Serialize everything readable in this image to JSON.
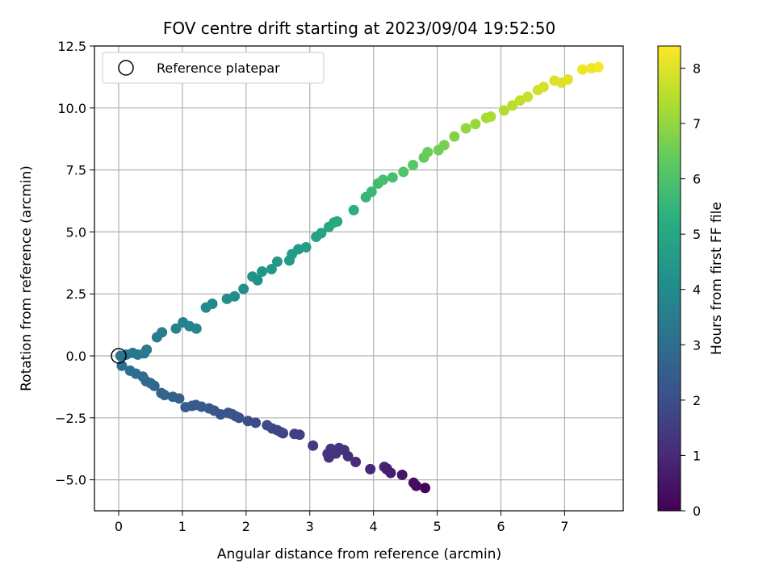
{
  "chart_data": {
    "type": "scatter",
    "title": "FOV centre drift starting at 2023/09/04 19:52:50",
    "xlabel": "Angular distance from reference (arcmin)",
    "ylabel": "Rotation from reference (arcmin)",
    "xlim": [
      -0.38,
      7.92
    ],
    "ylim": [
      -6.25,
      12.5
    ],
    "x_ticks": [
      "0",
      "1",
      "2",
      "3",
      "4",
      "5",
      "6",
      "7"
    ],
    "y_ticks": [
      "−5.0",
      "−2.5",
      "0.0",
      "2.5",
      "5.0",
      "7.5",
      "10.0",
      "12.5"
    ],
    "grid": true,
    "legend": {
      "position": "top-left",
      "entries": [
        "Reference platepar"
      ]
    },
    "reference_point": {
      "x": 0,
      "y": 0
    },
    "colorbar": {
      "label": "Hours from first FF file",
      "range": [
        0,
        8.4
      ],
      "ticks": [
        "0",
        "1",
        "2",
        "3",
        "4",
        "5",
        "6",
        "7",
        "8"
      ],
      "colormap": "viridis"
    },
    "series": [
      {
        "x": [
          4.81,
          4.67,
          4.63,
          4.45,
          4.27,
          4.21,
          4.17,
          4.21,
          3.95,
          3.72,
          3.6,
          3.54,
          3.46,
          3.41,
          3.33,
          3.3,
          3.28,
          3.05,
          2.84,
          2.76,
          2.58,
          2.55,
          2.49,
          2.41,
          2.33,
          2.15,
          2.03,
          1.89,
          1.84,
          1.78,
          1.72,
          1.6,
          1.5,
          1.42,
          1.3,
          1.21,
          1.15,
          1.05,
          0.95,
          0.85,
          0.72,
          0.67,
          0.56,
          0.5,
          0.43,
          0.38,
          0.27,
          0.18,
          0.05,
          0.03,
          0.12,
          0.22,
          0.3,
          0.4,
          0.44,
          0.6,
          0.68,
          0.9,
          1.01,
          1.11,
          1.22,
          1.37,
          1.47,
          1.7,
          1.82,
          1.96,
          2.1,
          2.18,
          2.25,
          2.4,
          2.49,
          2.68,
          2.72,
          2.82,
          2.94,
          3.1,
          3.18,
          3.3,
          3.38,
          3.43,
          3.69,
          3.88,
          3.97,
          4.07,
          4.15,
          4.3,
          4.47,
          4.62,
          4.79,
          4.85,
          5.02,
          5.11,
          5.27,
          5.45,
          5.6,
          5.77,
          5.84,
          6.05,
          6.18,
          6.3,
          6.42,
          6.58,
          6.67,
          6.84,
          6.95,
          7.05,
          7.28,
          7.42,
          7.53
        ],
        "y": [
          -5.33,
          -5.24,
          -5.12,
          -4.8,
          -4.72,
          -4.58,
          -4.48,
          -4.55,
          -4.57,
          -4.28,
          -4.05,
          -3.8,
          -3.72,
          -3.94,
          -3.75,
          -4.1,
          -3.95,
          -3.62,
          -3.18,
          -3.15,
          -3.12,
          -3.08,
          -3.0,
          -2.93,
          -2.8,
          -2.7,
          -2.63,
          -2.5,
          -2.44,
          -2.35,
          -2.3,
          -2.36,
          -2.21,
          -2.12,
          -2.05,
          -1.98,
          -2.02,
          -2.07,
          -1.72,
          -1.65,
          -1.58,
          -1.5,
          -1.21,
          -1.1,
          -1.02,
          -0.84,
          -0.72,
          -0.6,
          -0.4,
          0.0,
          0.05,
          0.12,
          0.05,
          0.1,
          0.25,
          0.75,
          0.95,
          1.1,
          1.35,
          1.2,
          1.1,
          1.95,
          2.1,
          2.3,
          2.4,
          2.7,
          3.2,
          3.05,
          3.4,
          3.5,
          3.8,
          3.85,
          4.1,
          4.3,
          4.38,
          4.8,
          4.95,
          5.2,
          5.38,
          5.42,
          5.88,
          6.4,
          6.62,
          6.95,
          7.1,
          7.2,
          7.42,
          7.7,
          8.0,
          8.22,
          8.3,
          8.5,
          8.85,
          9.18,
          9.35,
          9.6,
          9.65,
          9.9,
          10.1,
          10.3,
          10.45,
          10.72,
          10.85,
          11.1,
          11.02,
          11.15,
          11.55,
          11.6,
          11.65
        ],
        "hours": [
          0.1,
          0.25,
          0.35,
          0.55,
          0.7,
          0.8,
          0.9,
          0.75,
          0.95,
          1.05,
          1.15,
          1.25,
          1.3,
          1.25,
          1.35,
          1.2,
          1.3,
          1.45,
          1.55,
          1.6,
          1.65,
          1.7,
          1.75,
          1.8,
          1.85,
          1.95,
          2.0,
          2.05,
          2.1,
          2.15,
          2.2,
          2.15,
          2.25,
          2.3,
          2.35,
          2.4,
          2.4,
          2.4,
          2.55,
          2.6,
          2.65,
          2.7,
          2.8,
          2.85,
          2.9,
          2.95,
          3.0,
          3.05,
          3.1,
          3.2,
          3.25,
          3.3,
          3.35,
          3.4,
          3.45,
          3.55,
          3.6,
          3.65,
          3.7,
          3.7,
          3.75,
          3.9,
          3.95,
          4.05,
          4.1,
          4.15,
          4.3,
          4.25,
          4.35,
          4.4,
          4.45,
          4.5,
          4.55,
          4.6,
          4.65,
          4.8,
          4.85,
          4.95,
          5.0,
          5.05,
          5.3,
          5.5,
          5.6,
          5.75,
          5.85,
          5.9,
          6.05,
          6.2,
          6.35,
          6.45,
          6.55,
          6.65,
          6.8,
          7.0,
          7.1,
          7.25,
          7.3,
          7.4,
          7.5,
          7.6,
          7.7,
          7.8,
          7.85,
          7.95,
          7.95,
          8.0,
          8.2,
          8.25,
          8.3
        ]
      }
    ]
  }
}
